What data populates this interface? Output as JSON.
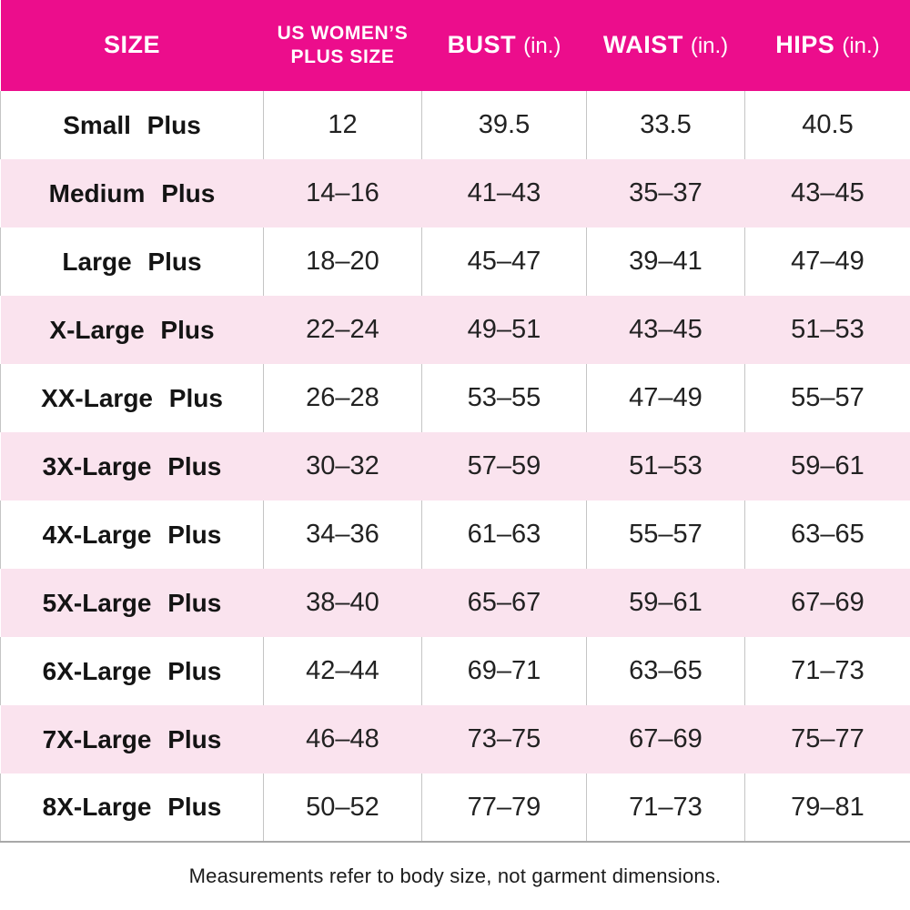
{
  "colors": {
    "header_bg": "#ec0d8c",
    "header_text": "#ffffff",
    "row_alt_pink": "#fae3ee",
    "divider_gray": "#c5c5c5",
    "bottom_rule_gray": "#a8a8a8",
    "cell_text": "#222222"
  },
  "chart_data": {
    "type": "table",
    "title": "",
    "columns": [
      {
        "label": "SIZE",
        "unit": ""
      },
      {
        "label": "US WOMEN'S PLUS SIZE",
        "label_lines": [
          "US WOMEN’S",
          "PLUS SIZE"
        ],
        "unit": ""
      },
      {
        "label": "BUST",
        "unit": "(in.)"
      },
      {
        "label": "WAIST",
        "unit": "(in.)"
      },
      {
        "label": "HIPS",
        "unit": "(in.)"
      }
    ],
    "rows": [
      [
        "Small Plus",
        "12",
        "39.5",
        "33.5",
        "40.5"
      ],
      [
        "Medium Plus",
        "14–16",
        "41–43",
        "35–37",
        "43–45"
      ],
      [
        "Large Plus",
        "18–20",
        "45–47",
        "39–41",
        "47–49"
      ],
      [
        "X-Large Plus",
        "22–24",
        "49–51",
        "43–45",
        "51–53"
      ],
      [
        "XX-Large Plus",
        "26–28",
        "53–55",
        "47–49",
        "55–57"
      ],
      [
        "3X-Large Plus",
        "30–32",
        "57–59",
        "51–53",
        "59–61"
      ],
      [
        "4X-Large Plus",
        "34–36",
        "61–63",
        "55–57",
        "63–65"
      ],
      [
        "5X-Large Plus",
        "38–40",
        "65–67",
        "59–61",
        "67–69"
      ],
      [
        "6X-Large Plus",
        "42–44",
        "69–71",
        "63–65",
        "71–73"
      ],
      [
        "7X-Large Plus",
        "46–48",
        "73–75",
        "67–69",
        "75–77"
      ],
      [
        "8X-Large Plus",
        "50–52",
        "77–79",
        "71–73",
        "79–81"
      ]
    ],
    "layout_hints": {
      "row_striping": [
        "white",
        "pink"
      ],
      "grid": "vertical dividers on white rows only",
      "footnote_position": "bottom-center"
    }
  },
  "footnote": "Measurements refer to body size, not garment dimensions."
}
